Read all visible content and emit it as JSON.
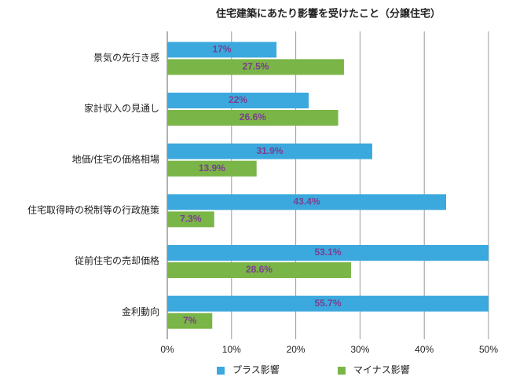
{
  "chart_data": {
    "type": "bar",
    "orientation": "horizontal",
    "title": "住宅建築にあたり影響を受けたこと（分譲住宅）",
    "categories": [
      "景気の先行き感",
      "家計収入の見通し",
      "地価/住宅の価格相場",
      "住宅取得時の税制等の行政施策",
      "従前住宅の売却価格",
      "金利動向"
    ],
    "series": [
      {
        "name": "プラス影響",
        "color": "#3ba8de",
        "values": [
          17,
          22,
          31.9,
          43.4,
          53.1,
          55.7
        ],
        "value_labels": [
          "17%",
          "22%",
          "31.9%",
          "43.4%",
          "53.1%",
          "55.7%"
        ]
      },
      {
        "name": "マイナス影響",
        "color": "#7ab547",
        "values": [
          27.5,
          26.6,
          13.9,
          7.3,
          28.6,
          7
        ],
        "value_labels": [
          "27.5%",
          "26.6%",
          "13.9%",
          "7.3%",
          "28.6%",
          "7%"
        ]
      }
    ],
    "xlim": [
      0,
      50
    ],
    "xticks": [
      {
        "value": 0,
        "label": "0%"
      },
      {
        "value": 10,
        "label": "10%"
      },
      {
        "value": 20,
        "label": "20%"
      },
      {
        "value": 30,
        "label": "30%"
      },
      {
        "value": 40,
        "label": "40%"
      },
      {
        "value": 50,
        "label": "50%"
      }
    ],
    "grid": true,
    "legend": "bottom"
  }
}
